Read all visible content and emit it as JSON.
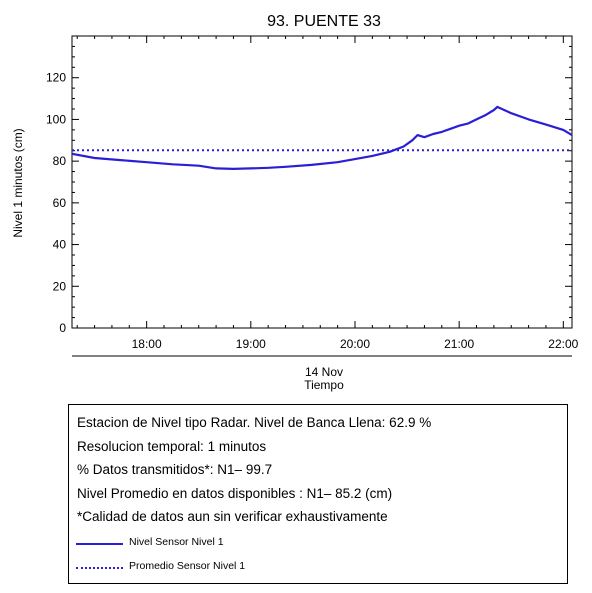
{
  "chart_data": {
    "type": "line",
    "title": "93. PUENTE 33",
    "ylabel": "Nivel 1 minutos (cm)",
    "xlabel_date": "14 Nov",
    "xlabel": "Tiempo",
    "xlim": [
      "17:17",
      "22:05"
    ],
    "ylim": [
      0,
      140
    ],
    "x_ticks": [
      "18:00",
      "19:00",
      "20:00",
      "21:00",
      "22:00"
    ],
    "y_ticks": [
      0,
      20,
      40,
      60,
      80,
      100,
      120
    ],
    "grid": false,
    "series": [
      {
        "name": "Nivel Sensor Nivel 1",
        "style": "solid",
        "color": "#2a1fd6",
        "x": [
          "17:17",
          "17:30",
          "17:45",
          "18:00",
          "18:15",
          "18:30",
          "18:40",
          "18:50",
          "19:00",
          "19:10",
          "19:20",
          "19:35",
          "19:50",
          "20:00",
          "20:10",
          "20:20",
          "20:28",
          "20:33",
          "20:36",
          "20:40",
          "20:45",
          "20:50",
          "20:55",
          "21:00",
          "21:05",
          "21:10",
          "21:15",
          "21:20",
          "21:22",
          "21:30",
          "21:40",
          "21:50",
          "22:00",
          "22:05"
        ],
        "values": [
          83.5,
          81.5,
          80.5,
          79.5,
          78.5,
          77.8,
          76.5,
          76.3,
          76.5,
          76.8,
          77.3,
          78.2,
          79.5,
          81.0,
          82.5,
          84.5,
          87.0,
          90.0,
          92.5,
          91.5,
          93.0,
          94.0,
          95.5,
          97.0,
          98.0,
          100.0,
          102.0,
          104.5,
          106.0,
          103.0,
          100.0,
          97.5,
          95.0,
          92.5
        ]
      },
      {
        "name": "Promedio Sensor Nivel 1",
        "style": "dotted",
        "color": "#2a1fd6",
        "x": [
          "17:17",
          "22:05"
        ],
        "values": [
          85.2,
          85.2
        ]
      }
    ]
  },
  "info": {
    "line1": "Estacion de Nivel tipo Radar. Nivel de Banca Llena: 62.9 %",
    "line2": "Resolucion temporal: 1 minutos",
    "line3": "% Datos transmitidos*: N1– 99.7",
    "line4": "Nivel Promedio en datos disponibles : N1– 85.2 (cm)",
    "line5": "*Calidad de datos aun sin verificar exhaustivamente"
  },
  "colors": {
    "series": "#2a1fd6"
  }
}
